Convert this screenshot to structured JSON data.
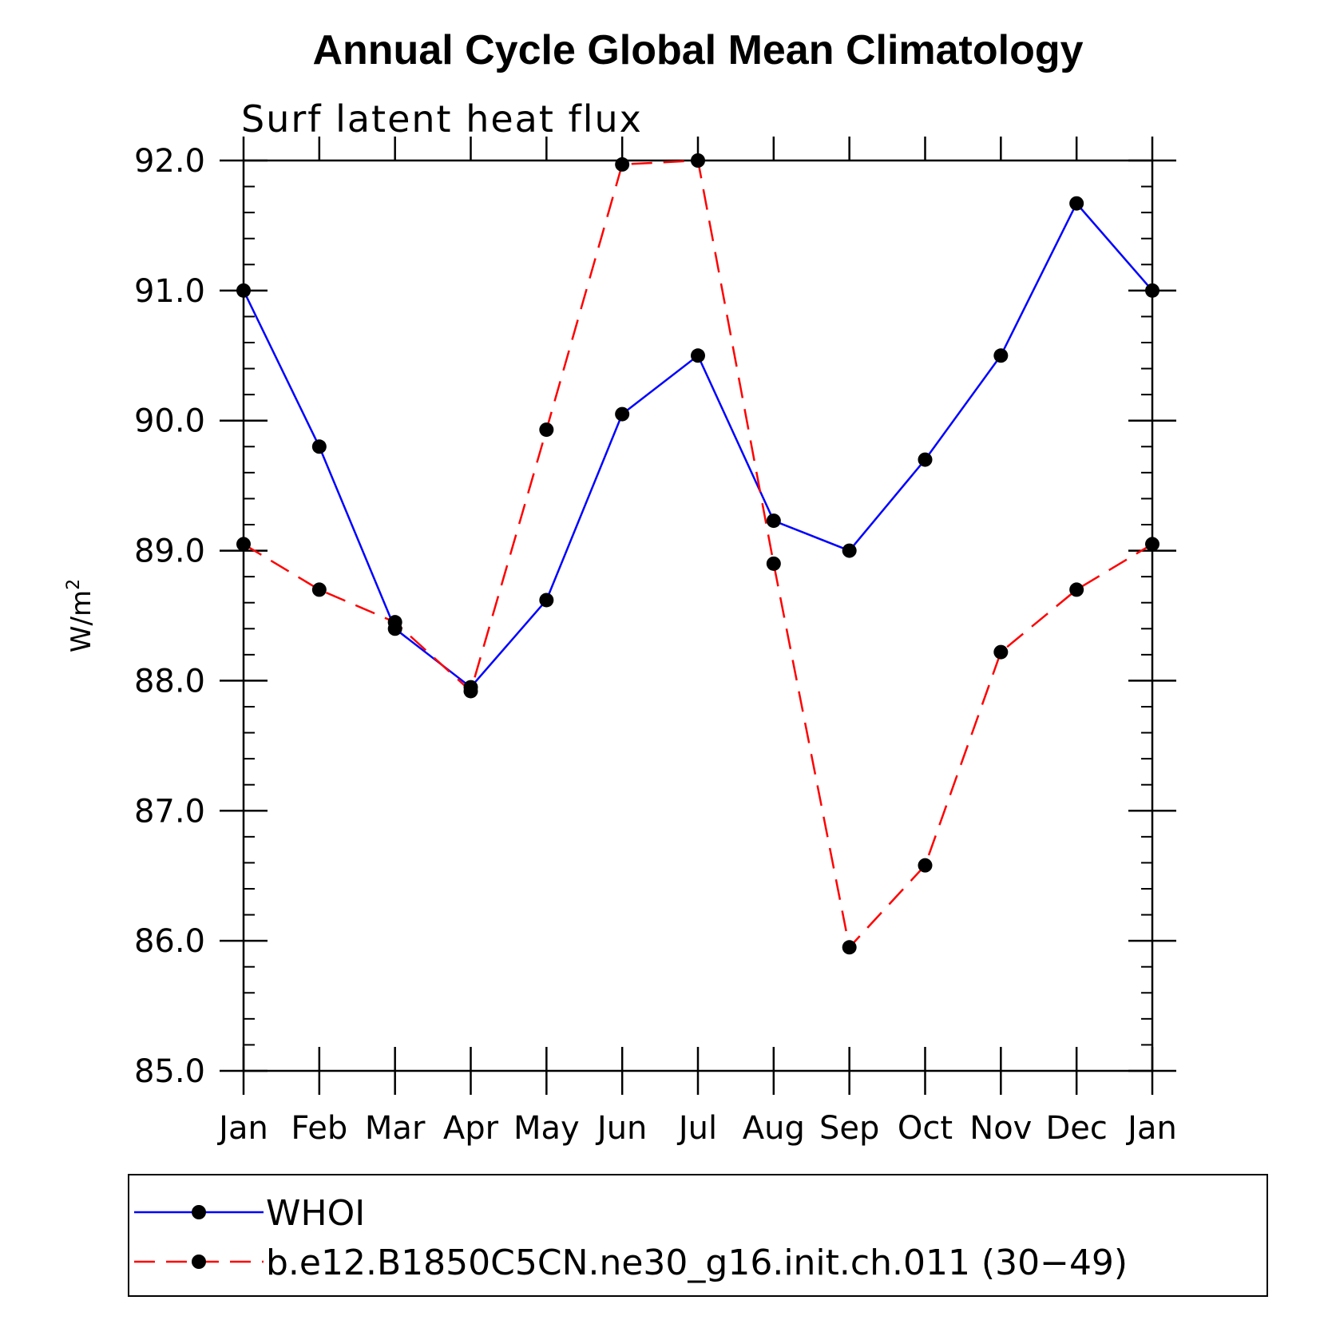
{
  "chart_data": {
    "type": "line",
    "title": "Annual Cycle Global Mean Climatology",
    "subtitle": "Surf latent heat flux",
    "xlabel": "",
    "ylabel_base": "W/m",
    "ylabel_sup": "2",
    "categories": [
      "Jan",
      "Feb",
      "Mar",
      "Apr",
      "May",
      "Jun",
      "Jul",
      "Aug",
      "Sep",
      "Oct",
      "Nov",
      "Dec",
      "Jan"
    ],
    "ylim": [
      85.0,
      92.0
    ],
    "yticks": [
      "85.0",
      "86.0",
      "87.0",
      "88.0",
      "89.0",
      "90.0",
      "91.0",
      "92.0"
    ],
    "series": [
      {
        "name": "WHOI",
        "color": "#0000ff",
        "dash": "solid",
        "values": [
          91.0,
          89.8,
          88.4,
          87.95,
          88.62,
          90.05,
          90.5,
          89.23,
          89.0,
          89.7,
          90.5,
          91.67,
          91.0
        ]
      },
      {
        "name": "b.e12.B1850C5CN.ne30_g16.init.ch.011 (30−49)",
        "color": "#ff0000",
        "dash": "dashed",
        "values": [
          89.05,
          88.7,
          88.45,
          87.92,
          89.93,
          91.97,
          92.0,
          88.9,
          85.95,
          86.58,
          88.22,
          88.7,
          89.05
        ]
      }
    ]
  }
}
